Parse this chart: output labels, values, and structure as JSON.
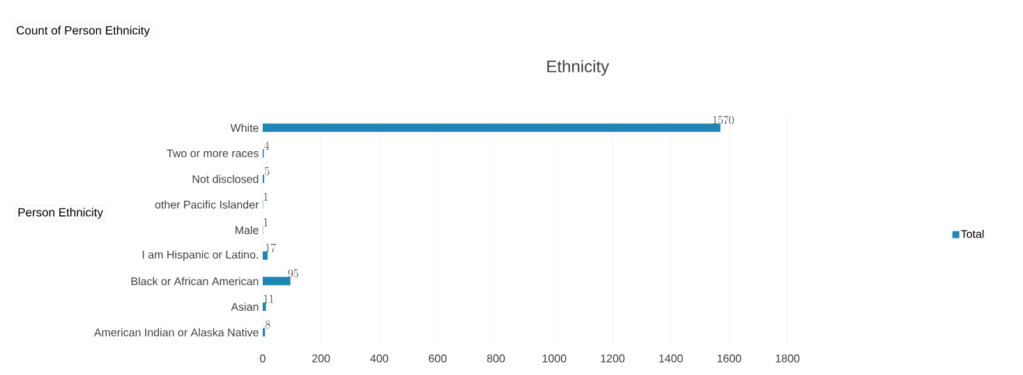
{
  "chart_data": {
    "type": "bar",
    "orientation": "horizontal",
    "title": "Ethnicity",
    "categories": [
      "White",
      "Two or more races",
      "Not disclosed",
      "other Pacific Islander",
      "Male",
      "I am Hispanic or Latino.",
      "Black or African American",
      "Asian",
      "American Indian or Alaska Native"
    ],
    "series": [
      {
        "name": "Total",
        "color": "#1f86b4",
        "values": [
          1570,
          4,
          5,
          1,
          1,
          17,
          95,
          11,
          8
        ]
      }
    ],
    "xlim": [
      0,
      1800
    ],
    "xticks": [
      0,
      200,
      400,
      600,
      800,
      1000,
      1200,
      1400,
      1600,
      1800
    ],
    "grid": "x",
    "legend": "right",
    "data_labels": true,
    "annotations": [
      "Count of Person Ethnicity",
      "Person Ethnicity"
    ]
  }
}
